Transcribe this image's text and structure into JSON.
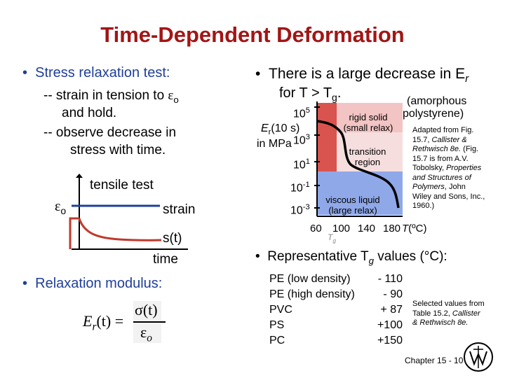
{
  "title": "Time-Dependent Deformation",
  "left": {
    "bullet1": "Stress relaxation test:",
    "line1a": "-- strain in tension to ",
    "eps": "ε",
    "sub_o": "o",
    "line1b": "and hold.",
    "line2a": "-- observe decrease in",
    "line2b": "stress with time.",
    "tensile_test": "tensile test",
    "strain_label": "strain",
    "sigma_t": "s(t)",
    "time_label": "time",
    "bullet2": "Relaxation modulus:",
    "formula_lhs": "E",
    "formula_r": "r",
    "formula_t": "(t) =",
    "formula_num": "σ(t)",
    "formula_den": "ε"
  },
  "right": {
    "bullet1a": "There is a large decrease in E",
    "bullet1a_sub": "r",
    "bullet1b": "for T > T",
    "bullet1b_sub": "g",
    "amorphous1": "(amorphous",
    "amorphous2": "polystyrene)",
    "y_label1": "E",
    "y_label1_sub": "r",
    "y_label2": "(10 s)",
    "y_label3": "in MPa",
    "ticks": [
      {
        "base": "10",
        "exp": "5"
      },
      {
        "base": "10",
        "exp": "3"
      },
      {
        "base": "10",
        "exp": "1"
      },
      {
        "base": "10",
        "exp": "-1"
      },
      {
        "base": "10",
        "exp": "-3"
      }
    ],
    "region_rigid1": "rigid solid",
    "region_rigid2": "(small relax)",
    "region_trans1": "transition",
    "region_trans2": "region",
    "region_visc1": "viscous liquid",
    "region_visc2": "(large relax)",
    "x_ticks": [
      "60",
      "100",
      "140",
      "180"
    ],
    "x_label": "T(ºC)",
    "tg_label": "T",
    "tg_sub": "g",
    "adapted": [
      "Adapted from Fig.",
      "15.7, Callister &",
      "Rethwisch 8e. (Fig.",
      "15.7 is from A.V.",
      "Tobolsky, Properties",
      "and Structures of",
      "Polymers, John",
      "Wiley and Sons, Inc.,",
      "1960.)"
    ],
    "bullet2": "Representative T",
    "bullet2_sub": "g",
    "bullet2_end": " values (°C):",
    "tg_table": [
      {
        "name": "PE (low density)",
        "value": "- 110"
      },
      {
        "name": "PE (high density)",
        "value": "-  90"
      },
      {
        "name": "PVC",
        "value": "+  87"
      },
      {
        "name": "PS",
        "value": "+100"
      },
      {
        "name": "PC",
        "value": "+150"
      }
    ],
    "selected": [
      "Selected values from",
      "Table 15.2, Callister",
      "& Rethwisch 8e."
    ],
    "footer": "Chapter 15 - 10"
  },
  "colors": {
    "title": "#a31515",
    "bullet": "#1f3f99",
    "region_red": "#d9534f",
    "region_blue": "#8fa8e8",
    "region_pink": "#f2c4c4"
  }
}
